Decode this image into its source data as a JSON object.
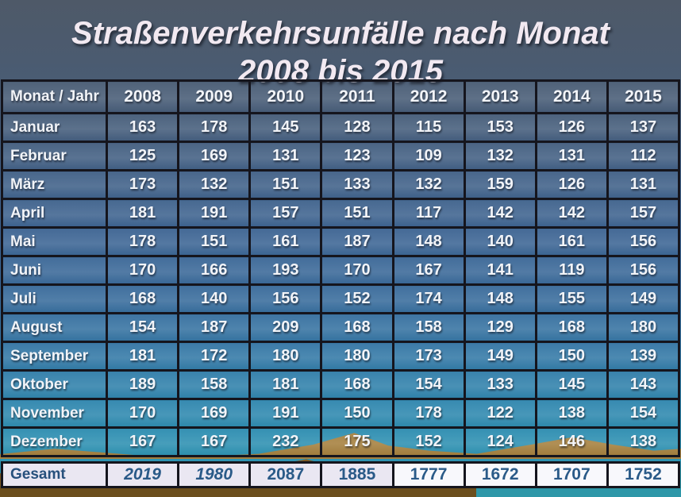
{
  "title": {
    "line1": "Straßenverkehrsunfälle nach Monat",
    "line2": "2008 bis 2015"
  },
  "chart_data": {
    "type": "table",
    "title": "Straßenverkehrsunfälle nach Monat 2008 bis 2015",
    "corner_label": "Monat / Jahr",
    "columns": [
      "2008",
      "2009",
      "2010",
      "2011",
      "2012",
      "2013",
      "2014",
      "2015"
    ],
    "rows": [
      {
        "month": "Januar",
        "values": [
          163,
          178,
          145,
          128,
          115,
          153,
          126,
          137
        ],
        "hl": {}
      },
      {
        "month": "Februar",
        "values": [
          125,
          169,
          131,
          123,
          109,
          132,
          131,
          112
        ],
        "hl": {}
      },
      {
        "month": "März",
        "values": [
          173,
          132,
          151,
          133,
          132,
          159,
          126,
          131
        ],
        "hl": {
          "5": "yellow"
        }
      },
      {
        "month": "April",
        "values": [
          181,
          191,
          157,
          151,
          117,
          142,
          142,
          157
        ],
        "hl": {
          "1": "yellow"
        }
      },
      {
        "month": "Mai",
        "values": [
          178,
          151,
          161,
          187,
          148,
          140,
          161,
          156
        ],
        "hl": {
          "3": "yellow"
        }
      },
      {
        "month": "Juni",
        "values": [
          170,
          166,
          193,
          170,
          167,
          141,
          119,
          156
        ],
        "hl": {}
      },
      {
        "month": "Juli",
        "values": [
          168,
          140,
          156,
          152,
          174,
          148,
          155,
          149
        ],
        "hl": {}
      },
      {
        "month": "August",
        "values": [
          154,
          187,
          209,
          168,
          158,
          129,
          168,
          180
        ],
        "hl": {
          "6": "orange",
          "7": "orange"
        }
      },
      {
        "month": "September",
        "values": [
          181,
          172,
          180,
          180,
          173,
          149,
          150,
          139
        ],
        "hl": {}
      },
      {
        "month": "Oktober",
        "values": [
          189,
          158,
          181,
          168,
          154,
          133,
          145,
          143
        ],
        "hl": {
          "0": "yellow"
        }
      },
      {
        "month": "November",
        "values": [
          170,
          169,
          191,
          150,
          178,
          122,
          138,
          154
        ],
        "hl": {
          "4": "yellow"
        }
      },
      {
        "month": "Dezember",
        "values": [
          167,
          167,
          232,
          175,
          152,
          124,
          146,
          138
        ],
        "hl": {
          "2": "yellow"
        }
      }
    ],
    "totals_label": "Gesamt",
    "totals": [
      2019,
      1980,
      2087,
      1885,
      1777,
      1672,
      1707,
      1752
    ],
    "legend_note_colors": {
      "highlight_yellow": "#e3e431",
      "highlight_orange": "#dc9934",
      "value_text": "#f2f4f8",
      "totals_text": "#2a5a88"
    }
  }
}
